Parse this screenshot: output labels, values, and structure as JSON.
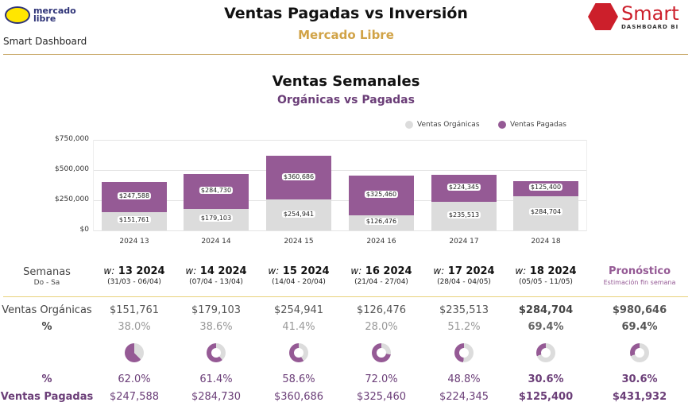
{
  "header": {
    "title": "Ventas Pagadas vs Inversión",
    "subtitle": "Mercado Libre",
    "brand": "Smart Dashboard",
    "logo_left": "mercado libre",
    "logo_right": "Smart",
    "logo_right_sub": "DASHBOARD BI"
  },
  "colors": {
    "organic": "#dcdcdc",
    "paid": "#955a95",
    "accent": "#d1a347"
  },
  "chart_data": {
    "type": "bar",
    "stacked": true,
    "title": "Ventas Semanales",
    "subtitle": "Orgánicas vs Pagadas",
    "categories": [
      "2024 13",
      "2024 14",
      "2024 15",
      "2024 16",
      "2024 17",
      "2024 18"
    ],
    "series": [
      {
        "name": "Ventas Orgánicas",
        "values": [
          151761,
          179103,
          254941,
          126476,
          235513,
          284704
        ],
        "labels": [
          "$151,761",
          "$179,103",
          "$254,941",
          "$126,476",
          "$235,513",
          "$284,704"
        ]
      },
      {
        "name": "Ventas Pagadas",
        "values": [
          247588,
          284730,
          360686,
          325460,
          224345,
          125400
        ],
        "labels": [
          "$247,588",
          "$284,730",
          "$360,686",
          "$325,460",
          "$224,345",
          "$125,400"
        ]
      }
    ],
    "yticks": [
      "$0",
      "$250,000",
      "$500,000",
      "$750,000"
    ],
    "ylim": [
      0,
      750000
    ],
    "legend": "top-right",
    "grid": true
  },
  "table": {
    "semanas": "Semanas",
    "semanas_sub": "Do - Sa",
    "week_prefix": "w:",
    "columns": [
      {
        "week": "13 2024",
        "range": "(31/03 - 06/04)",
        "org": "$151,761",
        "org_pct": "38.0%",
        "paid_pct": "62.0%",
        "paid": "$247,588",
        "org_frac": 0.38
      },
      {
        "week": "14 2024",
        "range": "(07/04 - 13/04)",
        "org": "$179,103",
        "org_pct": "38.6%",
        "paid_pct": "61.4%",
        "paid": "$284,730",
        "org_frac": 0.386
      },
      {
        "week": "15 2024",
        "range": "(14/04 - 20/04)",
        "org": "$254,941",
        "org_pct": "41.4%",
        "paid_pct": "58.6%",
        "paid": "$360,686",
        "org_frac": 0.414
      },
      {
        "week": "16 2024",
        "range": "(21/04 - 27/04)",
        "org": "$126,476",
        "org_pct": "28.0%",
        "paid_pct": "72.0%",
        "paid": "$325,460",
        "org_frac": 0.28
      },
      {
        "week": "17 2024",
        "range": "(28/04 - 04/05)",
        "org": "$235,513",
        "org_pct": "51.2%",
        "paid_pct": "48.8%",
        "paid": "$224,345",
        "org_frac": 0.512
      },
      {
        "week": "18 2024",
        "range": "(05/05 - 11/05)",
        "org": "$284,704",
        "org_pct": "69.4%",
        "paid_pct": "30.6%",
        "paid": "$125,400",
        "org_frac": 0.694
      }
    ],
    "forecast": {
      "title": "Pronóstico",
      "sub": "Estimación fin semana",
      "org": "$980,646",
      "org_pct": "69.4%",
      "paid_pct": "30.6%",
      "paid": "$431,932",
      "org_frac": 0.694
    },
    "rows": {
      "org": "Ventas Orgánicas",
      "pct": "%",
      "paid": "Ventas Pagadas"
    }
  }
}
